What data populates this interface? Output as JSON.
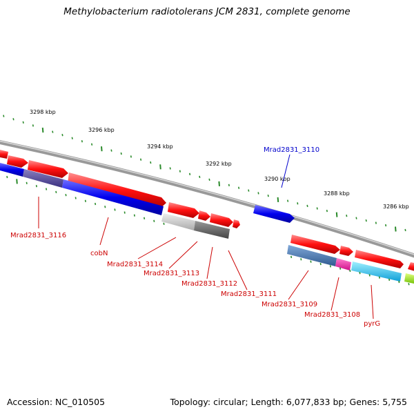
{
  "title": "Methylobacterium radiotolerans JCM 2831, complete genome",
  "footer": {
    "accession": "Accession: NC_010505",
    "summary": "Topology: circular; Length: 6,077,833 bp; Genes: 5,755"
  },
  "ticks": [
    "3298 kbp",
    "3296 kbp",
    "3294 kbp",
    "3292 kbp",
    "3290 kbp",
    "3288 kbp",
    "3286 kbp"
  ],
  "labels": [
    {
      "text": "Mrad2831_3110",
      "color": "#0000cc"
    },
    {
      "text": "Mrad2831_3116",
      "color": "#cc0000"
    },
    {
      "text": "cobN",
      "color": "#cc0000"
    },
    {
      "text": "Mrad2831_3114",
      "color": "#cc0000"
    },
    {
      "text": "Mrad2831_3113",
      "color": "#cc0000"
    },
    {
      "text": "Mrad2831_3112",
      "color": "#cc0000"
    },
    {
      "text": "Mrad2831_3111",
      "color": "#cc0000"
    },
    {
      "text": "Mrad2831_3109",
      "color": "#cc0000"
    },
    {
      "text": "Mrad2831_3108",
      "color": "#cc0000"
    },
    {
      "text": "pyrG",
      "color": "#cc0000"
    }
  ],
  "colors": {
    "forward": "#ff0000",
    "reverse": "#0000ee",
    "backbone": "#888888",
    "tick": "#2a8a2a"
  }
}
